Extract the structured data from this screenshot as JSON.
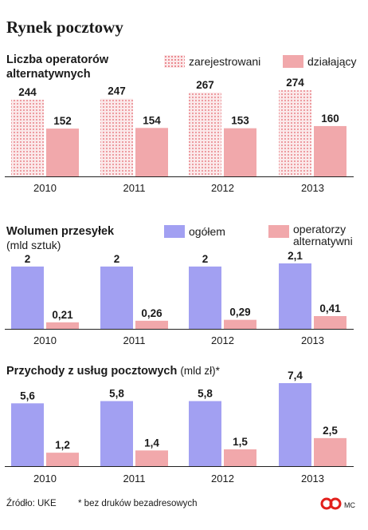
{
  "title": "Rynek pocztowy",
  "sections": [
    {
      "heading_lines": [
        "Liczba operatorów",
        "alternatywnych"
      ],
      "subheading": "",
      "legend": [
        {
          "label": "zarejestrowani",
          "style": "dots"
        },
        {
          "label": "działający",
          "style": "pink"
        }
      ]
    },
    {
      "heading_lines": [
        "Wolumen przesyłek"
      ],
      "subheading": "(mld sztuk)",
      "legend": [
        {
          "label": "ogółem",
          "style": "purple"
        },
        {
          "label": "operatorzy alternatywni",
          "label_lines": [
            "operatorzy",
            "alternatywni"
          ],
          "style": "pink"
        }
      ]
    },
    {
      "heading_lines": [
        "Przychody z usług pocztowych"
      ],
      "heading_suffix": "(mld zł)*",
      "subheading": "",
      "legend": []
    }
  ],
  "footer": {
    "source": "Źródło: UKE",
    "note": "* bez druków bezadresowych",
    "credit": "MC"
  },
  "colors": {
    "registered_dots": "#e87c83",
    "active_pink": "#f1a8ab",
    "total_purple": "#a2a0f2",
    "logo_red": "#e2201c"
  },
  "chart_data": [
    {
      "type": "bar",
      "title": "Liczba operatorów alternatywnych",
      "categories": [
        "2010",
        "2011",
        "2012",
        "2013"
      ],
      "series": [
        {
          "name": "zarejestrowani",
          "values": [
            244,
            247,
            267,
            274
          ],
          "labels": [
            "244",
            "247",
            "267",
            "274"
          ],
          "style": "dots"
        },
        {
          "name": "działający",
          "values": [
            152,
            154,
            153,
            160
          ],
          "labels": [
            "152",
            "154",
            "153",
            "160"
          ],
          "style": "pink"
        }
      ],
      "ylim": [
        0,
        274
      ]
    },
    {
      "type": "bar",
      "title": "Wolumen przesyłek",
      "ylabel": "(mld sztuk)",
      "categories": [
        "2010",
        "2011",
        "2012",
        "2013"
      ],
      "series": [
        {
          "name": "ogółem",
          "values": [
            2,
            2,
            2,
            2.1
          ],
          "labels": [
            "2",
            "2",
            "2",
            "2,1"
          ],
          "style": "purple"
        },
        {
          "name": "operatorzy alternatywni",
          "values": [
            0.21,
            0.26,
            0.29,
            0.41
          ],
          "labels": [
            "0,21",
            "0,26",
            "0,29",
            "0,41"
          ],
          "style": "pink"
        }
      ],
      "ylim": [
        0,
        2.1
      ]
    },
    {
      "type": "bar",
      "title": "Przychody z usług pocztowych (mld zł)*",
      "categories": [
        "2010",
        "2011",
        "2012",
        "2013"
      ],
      "series": [
        {
          "name": "ogółem",
          "values": [
            5.6,
            5.8,
            5.8,
            7.4
          ],
          "labels": [
            "5,6",
            "5,8",
            "5,8",
            "7,4"
          ],
          "style": "purple"
        },
        {
          "name": "operatorzy alternatywni",
          "values": [
            1.2,
            1.4,
            1.5,
            2.5
          ],
          "labels": [
            "1,2",
            "1,4",
            "1,5",
            "2,5"
          ],
          "style": "pink"
        }
      ],
      "ylim": [
        0,
        7.4
      ]
    }
  ]
}
